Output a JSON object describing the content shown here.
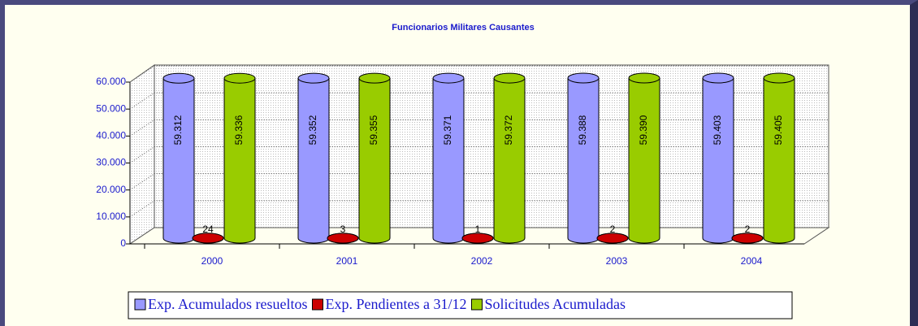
{
  "chart_data": {
    "type": "bar3d",
    "title": "Funcionarios Militares Causantes",
    "categories": [
      "2000",
      "2001",
      "2002",
      "2003",
      "2004"
    ],
    "series": [
      {
        "name": "Exp. Acumulados resueltos",
        "color": "#9999ff",
        "values": [
          59312,
          59352,
          59371,
          59388,
          59403
        ],
        "value_labels": [
          "59.312",
          "59.352",
          "59.371",
          "59.388",
          "59.403"
        ]
      },
      {
        "name": "Exp. Pendientes a 31/12",
        "color": "#cc0000",
        "values": [
          24,
          3,
          1,
          2,
          2
        ]
      },
      {
        "name": "Solicitudes Acumuladas",
        "color": "#99cc00",
        "values": [
          59336,
          59355,
          59372,
          59390,
          59405
        ],
        "value_labels": [
          "59.336",
          "59.355",
          "59.372",
          "59.390",
          "59.405"
        ]
      }
    ],
    "ylim": [
      0,
      60000
    ],
    "yticks": [
      0,
      {
        "value": 10000,
        "label": "10.000"
      },
      {
        "value": 20000,
        "label": "20.000"
      },
      {
        "value": 30000,
        "label": "30.000"
      },
      {
        "value": 40000,
        "label": "40.000"
      },
      {
        "value": 50000,
        "label": "50.000"
      },
      {
        "value": 60000,
        "label": "60.000"
      }
    ],
    "grid": true,
    "legend": "bottom"
  }
}
